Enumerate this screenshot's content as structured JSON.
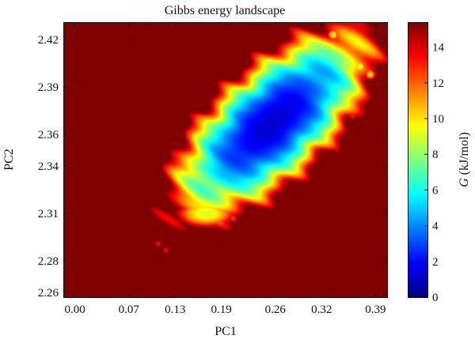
{
  "chart_data": {
    "type": "heatmap",
    "title": "Gibbs energy landscape",
    "xlabel": "PC1",
    "ylabel": "PC2",
    "colorbar_label_italic": "G",
    "colorbar_label_unit": " (kJ/mol)",
    "xlim": [
      -0.015,
      0.405
    ],
    "ylim": [
      2.257,
      2.431
    ],
    "x_ticks": [
      0.0,
      0.07,
      0.13,
      0.19,
      0.26,
      0.32,
      0.39
    ],
    "x_tick_labels": [
      "0.00",
      "0.07",
      "0.13",
      "0.19",
      "0.26",
      "0.32",
      "0.39"
    ],
    "y_ticks": [
      2.26,
      2.28,
      2.31,
      2.34,
      2.36,
      2.39,
      2.42
    ],
    "y_tick_labels": [
      "2.26",
      "2.28",
      "2.31",
      "2.34",
      "2.36",
      "2.39",
      "2.42"
    ],
    "colorbar_range": [
      0,
      15.4
    ],
    "colorbar_ticks": [
      0,
      2,
      4,
      6,
      8,
      10,
      12,
      14
    ],
    "colorbar_tick_labels": [
      "0",
      "2",
      "4",
      "6",
      "8",
      "10",
      "12",
      "14"
    ],
    "colormap": "jet",
    "background_value": 15.4,
    "basin": {
      "center": [
        0.255,
        2.367
      ],
      "orientation_deg": 43,
      "minimum": 1.2,
      "shape": "elongated diagonal basin"
    },
    "tail": {
      "from": [
        0.15,
        2.32
      ],
      "to": [
        0.19,
        2.3
      ],
      "value_range": [
        9,
        13
      ]
    },
    "specks": [
      {
        "x": 0.108,
        "y": 2.291,
        "value": 13.5
      },
      {
        "x": 0.118,
        "y": 2.287,
        "value": 13.5
      },
      {
        "x": 0.205,
        "y": 2.307,
        "value": 12.5
      },
      {
        "x": 0.335,
        "y": 2.423,
        "value": 9.5
      },
      {
        "x": 0.345,
        "y": 2.414,
        "value": 10.0
      },
      {
        "x": 0.37,
        "y": 2.403,
        "value": 9.0
      },
      {
        "x": 0.383,
        "y": 2.398,
        "value": 10.0
      },
      {
        "x": 0.36,
        "y": 2.372,
        "value": 13.0
      },
      {
        "x": 0.34,
        "y": 2.385,
        "value": 9.0
      }
    ]
  }
}
